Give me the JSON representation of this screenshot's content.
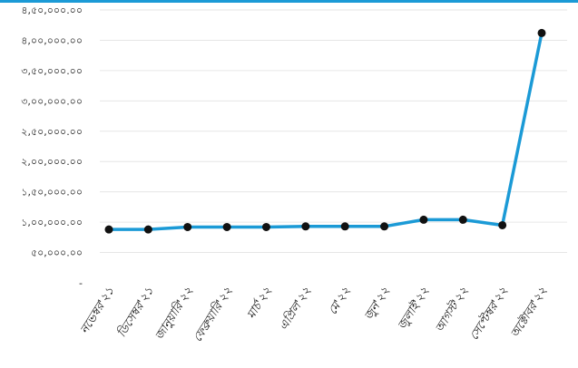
{
  "chart_data": {
    "type": "line",
    "title": "",
    "xlabel": "",
    "ylabel": "",
    "categories": [
      "নভেম্বর'২১",
      "ডিসেম্বর'২১",
      "জানুয়ারি'২২",
      "ফেব্রুয়ারি'২২",
      "মার্চ'২২",
      "এপ্রিল'২২",
      "মে'২২",
      "জুন'২২",
      "জুলাই'২২",
      "আগস্ট'২২",
      "সেপ্টেম্বর'২২",
      "অক্টোবর'২২"
    ],
    "series": [
      {
        "values": [
          88000,
          88000,
          92000,
          92000,
          92000,
          93000,
          93000,
          93000,
          104000,
          104000,
          95000,
          412000
        ]
      }
    ],
    "ylim": [
      0,
      450000
    ],
    "yticks": [
      0,
      50000,
      100000,
      150000,
      200000,
      250000,
      300000,
      350000,
      400000,
      450000
    ],
    "ytick_labels": [
      "-",
      "৫০,০০০.০০",
      "১,০০,০০০.০০",
      "১,৫০,০০০.০০",
      "২,০০,০০০.০০",
      "২,৫০,০০০.০০",
      "৩,০০,০০০.০০",
      "৩,৫০,০০০.০০",
      "৪,০০,০০০.০০",
      "৪,৫০,০০০.০০"
    ],
    "grid": true,
    "legend": "none",
    "colors": {
      "line": "#1b9ad6",
      "marker": "#111111",
      "grid": "#e6e6e6",
      "topbar": "#1b9ad6"
    }
  }
}
